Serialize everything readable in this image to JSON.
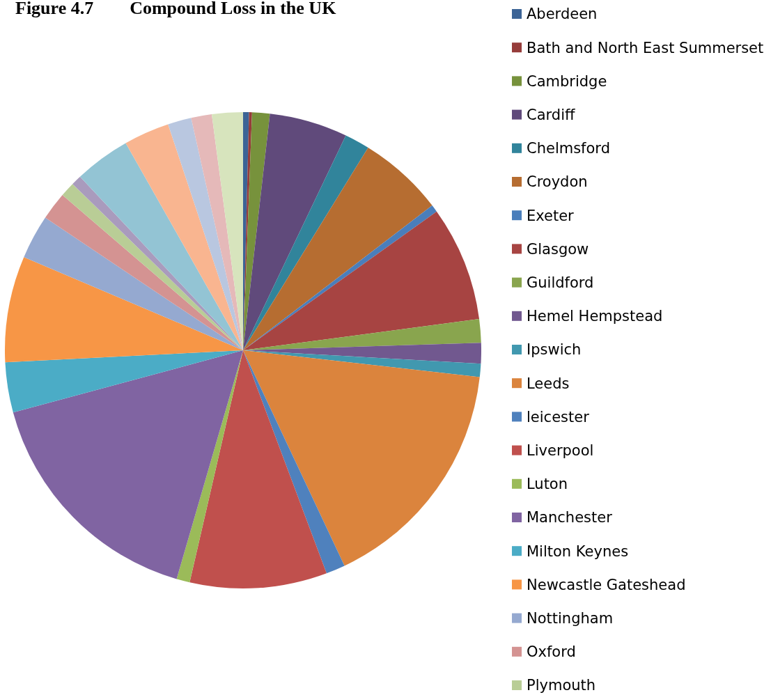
{
  "chart_data": {
    "type": "pie",
    "title": "Figure 4.7        Compound Loss in the UK",
    "categories": [
      "Aberdeen",
      "Bath and North East Summerset",
      "Cambridge",
      "Cardiff",
      "Chelmsford",
      "Croydon",
      "Exeter",
      "Glasgow",
      "Guildford",
      "Hemel Hempstead",
      "Ipswich",
      "Leeds",
      "leicester",
      "Liverpool",
      "Luton",
      "Manchester",
      "Milton Keynes",
      "Newcastle Gateshead",
      "Nottingham",
      "Oxford",
      "Plymouth",
      null,
      null,
      null,
      null,
      null,
      null
    ],
    "values": [
      0.4,
      0.2,
      1.2,
      5.3,
      1.7,
      5.8,
      0.5,
      7.8,
      1.6,
      1.4,
      0.9,
      16.2,
      1.3,
      9.3,
      0.9,
      16.3,
      3.4,
      7.2,
      3.0,
      1.9,
      1.0,
      0.7,
      3.8,
      3.1,
      1.6,
      1.4,
      2.1
    ],
    "colors": [
      "#3c6496",
      "#963c3a",
      "#77923c",
      "#604a7b",
      "#31849b",
      "#b66d31",
      "#4a7ebb",
      "#a74442",
      "#89a54e",
      "#71588f",
      "#4198af",
      "#db843d",
      "#4f81bd",
      "#c0504d",
      "#9bbb59",
      "#8064a2",
      "#4bacc6",
      "#f79646",
      "#95a9d0",
      "#d49392",
      "#b9cd96",
      "#a99bbd",
      "#93c4d4",
      "#f9b590",
      "#b9c7e0",
      "#e5b9b9",
      "#d7e4bd"
    ],
    "legend": "right"
  }
}
